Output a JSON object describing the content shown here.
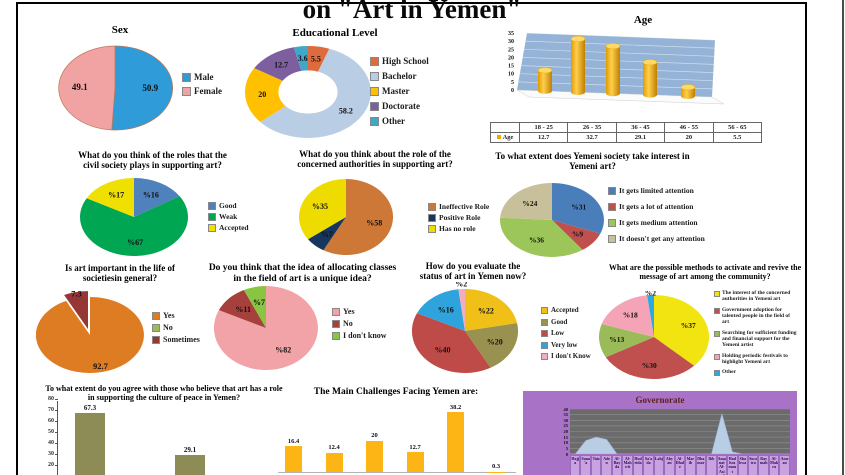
{
  "page": {
    "title": "on \"Art in Yemen\""
  },
  "chart_data": [
    {
      "type": "pie",
      "title": "Sex",
      "legend_position": "right",
      "slices": [
        {
          "label": "Male",
          "value": 50.9,
          "display": "50.9",
          "color": "#2f9bd8"
        },
        {
          "label": "Female",
          "value": 49.1,
          "display": "49.1",
          "color": "#f1a3a3"
        }
      ]
    },
    {
      "type": "donut",
      "title": "Educational Level",
      "legend_position": "right",
      "slices": [
        {
          "label": "High School",
          "value": 5.5,
          "display": "5.5",
          "color": "#dd6b3d"
        },
        {
          "label": "Bachelor",
          "value": 58.2,
          "display": "58.2",
          "color": "#b9cde5"
        },
        {
          "label": "Master",
          "value": 20,
          "display": "20",
          "color": "#ffc000"
        },
        {
          "label": "Doctorate",
          "value": 12.7,
          "display": "12.7",
          "color": "#7d5fa0"
        },
        {
          "label": "Other",
          "value": 3.6,
          "display": "3.6",
          "color": "#3fa8c9"
        }
      ]
    },
    {
      "type": "bar3d",
      "title": "Age",
      "series_label": "Age",
      "categories": [
        "18 - 25",
        "26 - 35",
        "36 - 45",
        "46 - 55",
        "56 - 65"
      ],
      "values": [
        12.7,
        32.7,
        29.1,
        20,
        5.5
      ],
      "display": [
        "12.7",
        "32.7",
        "29.1",
        "20",
        "5.5"
      ],
      "y_ticks": [
        35,
        30,
        25,
        20,
        15,
        10,
        5,
        0
      ],
      "ylim": [
        0,
        35
      ],
      "bar_color": "#f0a500"
    },
    {
      "type": "pie",
      "title": "What do you think of the roles that the\ncivil society plays in supporting art?",
      "slices": [
        {
          "label": "Good",
          "value": 16,
          "display": "%16",
          "color": "#4f81bd"
        },
        {
          "label": "Weak",
          "value": 67,
          "display": "%67",
          "color": "#00a651"
        },
        {
          "label": "Accepted",
          "value": 17,
          "display": "%17",
          "color": "#efe000"
        }
      ]
    },
    {
      "type": "pie",
      "title": "What do you think about the role of the\nconcerned  authorities in supporting art?",
      "slices": [
        {
          "label": "Ineffective Role",
          "value": 58,
          "display": "%58",
          "color": "#cd7836"
        },
        {
          "label": "Positive Role",
          "value": 7,
          "display": "%7",
          "color": "#17365d"
        },
        {
          "label": "Has no role",
          "value": 35,
          "display": "%35",
          "color": "#eedc00"
        }
      ]
    },
    {
      "type": "pie",
      "title": "To what extent does Yemeni society take interest in\nYemeni art?",
      "slices": [
        {
          "label": "It gets limited attention",
          "value": 31,
          "display": "%31",
          "color": "#4a7ebb"
        },
        {
          "label": "It gets a lot of attention",
          "value": 9,
          "display": "%9",
          "color": "#c0504d"
        },
        {
          "label": "It gets medium attention",
          "value": 36,
          "display": "%36",
          "color": "#9cc65a"
        },
        {
          "label": "It doesn't get any attention",
          "value": 24,
          "display": "%24",
          "color": "#c8c09a"
        }
      ]
    },
    {
      "type": "pie",
      "title": "Is art important in the life of\nsocietiesin general?",
      "slices": [
        {
          "label": "Yes",
          "value": 92.7,
          "display": "92.7",
          "color": "#dd7c23",
          "label_r": 0.85
        },
        {
          "label": "No",
          "value": 0,
          "display": "",
          "color": "#9bbb59"
        },
        {
          "label": "Sometimes",
          "value": 7.3,
          "display": "7.3",
          "color": "#953735",
          "explode": 0.16,
          "label_r": 0.95
        }
      ]
    },
    {
      "type": "pie",
      "title": "Do you think that the idea of allocating classes\nin the field of art is a unique idea?",
      "slices": [
        {
          "label": "Yes",
          "value": 82,
          "display": "%82",
          "color": "#f1a3a8"
        },
        {
          "label": "No",
          "value": 11,
          "display": "%11",
          "color": "#a5403d"
        },
        {
          "label": "I don't know",
          "value": 7,
          "display": "%7",
          "color": "#89c540"
        }
      ]
    },
    {
      "type": "pie",
      "title": "How do you evaluate the\nstatus of art in Yemen now?",
      "slices": [
        {
          "label": "Accepted",
          "value": 22,
          "display": "%22",
          "color": "#f0bf18"
        },
        {
          "label": "Good",
          "value": 20,
          "display": "%20",
          "color": "#98914f"
        },
        {
          "label": "Low",
          "value": 40,
          "display": "%40",
          "color": "#bf4b48"
        },
        {
          "label": "Very low",
          "value": 16,
          "display": "%16",
          "color": "#2fa3dc"
        },
        {
          "label": "I don't Know",
          "value": 2,
          "display": "%2",
          "color": "#f2aebe",
          "label_r": 1.12
        }
      ]
    },
    {
      "type": "pie",
      "title": "What are the possible methods to activate and revive the\nmessage of art among the community?",
      "slices": [
        {
          "label": "The interest of the concerned authorities in Yemeni art",
          "value": 37,
          "display": "%37",
          "color": "#f1e410"
        },
        {
          "label": "Government adoption for talented people in the field of art",
          "value": 30,
          "display": "%30",
          "color": "#c0504d"
        },
        {
          "label": "Searching for sufficient funding and financial support for the Yemeni artist",
          "value": 13,
          "display": "%13",
          "color": "#9bbb59"
        },
        {
          "label": "Holding periodic festivals to highlight Yemeni art",
          "value": 18,
          "display": "%18",
          "color": "#f5a3b7"
        },
        {
          "label": "Other",
          "value": 2,
          "display": "%2",
          "color": "#2ba9e0",
          "label_r": 1.05
        }
      ]
    },
    {
      "type": "bar",
      "title": "To what extent do you agree with those who believe that art has a role\nin supporting the culture of peace in Yemen?",
      "values": [
        67.3,
        29.1
      ],
      "labels": [
        "67.3",
        "29.1"
      ],
      "y_ticks": [
        80,
        70,
        60,
        50,
        40,
        30,
        20
      ],
      "ylim": [
        0,
        80
      ],
      "bar_color": "#8e8c56"
    },
    {
      "type": "bar",
      "title": "The Main Challenges Facing Yemen are:",
      "values": [
        16.4,
        12.4,
        20,
        12.7,
        38.2,
        0.3
      ],
      "labels": [
        "16.4",
        "12.4",
        "20",
        "12.7",
        "38.2",
        "0.3"
      ],
      "ylim": [
        0,
        45
      ],
      "bar_color": "#fcb515"
    },
    {
      "type": "area",
      "title": "Governorate",
      "categories": [
        "Hajja",
        "Sana'a",
        "Taiz",
        "Aden",
        "Al-Bayda",
        "Al-Mahwit",
        "Hodeida",
        "Sa'ada",
        "Lahj",
        "Abyan",
        "Al-Dhale",
        "Marib",
        "Dhamar",
        "Ibb",
        "Amanat Al-Asimah",
        "Hadhramaut",
        "Shabwa",
        "Socotra",
        "Raymah",
        "Al-Mahra",
        "Amran"
      ],
      "values": [
        0,
        12,
        15,
        13,
        0,
        0,
        0,
        0,
        0,
        0,
        0,
        0,
        0,
        0,
        36,
        2,
        0,
        0,
        0,
        0,
        0
      ],
      "y_ticks": [
        40,
        35,
        30,
        25,
        20,
        15,
        10,
        5,
        0
      ],
      "ylim": [
        0,
        40
      ],
      "area_color": "#b9cde5",
      "panel_color": "#a873c7",
      "plot_color": "#6b6b6b",
      "title_color": "#5f2121"
    }
  ]
}
